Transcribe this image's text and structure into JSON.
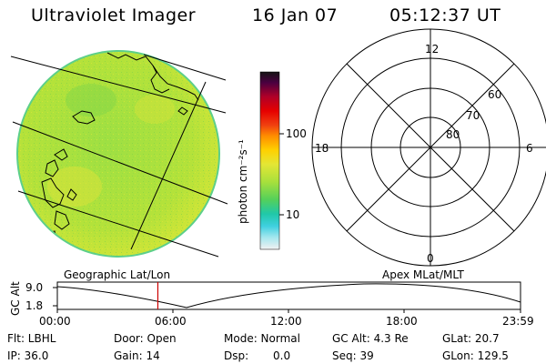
{
  "header": {
    "instrument": "Ultraviolet Imager",
    "date": "16 Jan 07",
    "time": "05:12:37 UT"
  },
  "colorbar": {
    "unit_label": "photon cm⁻²s⁻¹",
    "tick_100": "100",
    "tick_10": "10"
  },
  "polar": {
    "mlt_12": "12",
    "mlt_18": "18",
    "mlt_6": "6",
    "mlt_0": "0",
    "lat_60": "60",
    "lat_70": "70",
    "lat_80": "80"
  },
  "timeline": {
    "left_label": "Geographic Lat/Lon",
    "right_label": "Apex MLat/MLT",
    "ylabel": "GC Alt",
    "ytick_top": "9.0",
    "ytick_bottom": "1.8",
    "xticks": [
      "00:00",
      "06:00",
      "12:00",
      "18:00",
      "23:59"
    ],
    "marker_time_fraction": 0.217
  },
  "info": {
    "flt": "Flt: LBHL",
    "ip": "IP: 36.0",
    "door": "Door: Open",
    "gain": "Gain: 14",
    "mode": "Mode: Normal",
    "dsp_label": "Dsp:",
    "dsp_value": "0.0",
    "gc_alt": "GC Alt: 4.3 Re",
    "seq": "Seq: 39",
    "glat": "GLat:  20.7",
    "glon": "GLon: 129.5"
  },
  "colors": {
    "earth_disk": "#a8e03c",
    "colorbar_top": "#141414",
    "marker_line": "#cc0000"
  },
  "icons": {
    "earth_image": "earth-uv-image-icon",
    "polar_grid": "polar-grid-icon"
  }
}
